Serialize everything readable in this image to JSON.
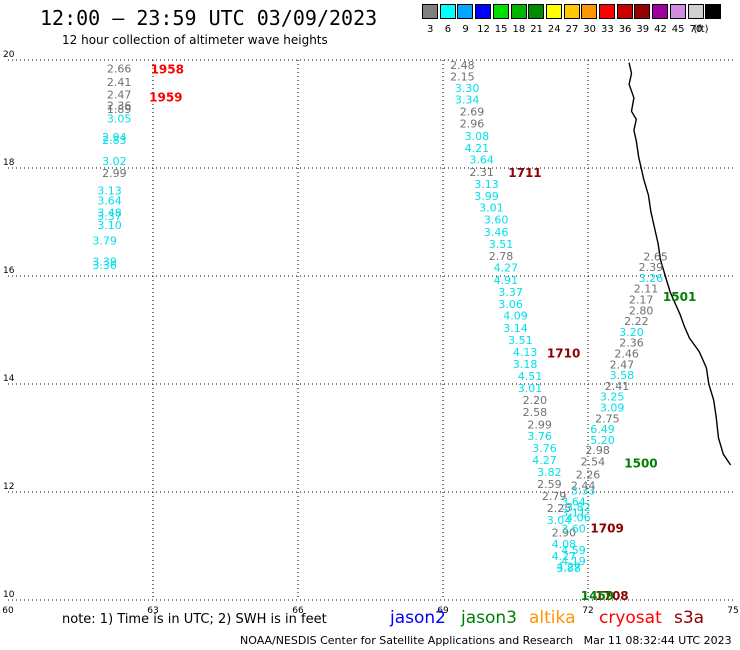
{
  "header": {
    "title": "12:00 — 23:59 UTC 03/09/2023",
    "subtitle": "12 hour collection of altimeter wave heights"
  },
  "legend": {
    "unit": "(ft)",
    "items": [
      {
        "label": "3",
        "color": "#808080"
      },
      {
        "label": "6",
        "color": "#00ffff"
      },
      {
        "label": "9",
        "color": "#00a8ff"
      },
      {
        "label": "12",
        "color": "#0000ff"
      },
      {
        "label": "15",
        "color": "#00dd00"
      },
      {
        "label": "18",
        "color": "#00b400"
      },
      {
        "label": "21",
        "color": "#008c00"
      },
      {
        "label": "24",
        "color": "#ffff00"
      },
      {
        "label": "27",
        "color": "#ffc800"
      },
      {
        "label": "30",
        "color": "#ff9600"
      },
      {
        "label": "33",
        "color": "#ff0000"
      },
      {
        "label": "36",
        "color": "#c80000"
      },
      {
        "label": "39",
        "color": "#960000"
      },
      {
        "label": "42",
        "color": "#a000a0"
      },
      {
        "label": "45",
        "color": "#d08ce0"
      },
      {
        "label": "70",
        "color": "#d0d0d0"
      },
      {
        "label": "",
        "color": "#000000"
      }
    ]
  },
  "axes": {
    "lon_ticks": [
      "60",
      "63",
      "66",
      "69",
      "72",
      "75"
    ],
    "lat_ticks": [
      "20",
      "18",
      "16",
      "14",
      "12",
      "10"
    ]
  },
  "colors": {
    "gray_value": "#707070",
    "cyan_value": "#00e0e8",
    "red_pass": "#ff0000",
    "darkred_pass": "#8b0000",
    "green_pass": "#008000",
    "jason2": "#0000ff",
    "jason3": "#008000",
    "altika": "#ff9600",
    "cryosat": "#ff0000",
    "s3a": "#8b0000"
  },
  "wave_labels": [
    {
      "v": "2.66",
      "c": "g",
      "lon": 62.3,
      "lat": 19.77
    },
    {
      "v": "2.41",
      "c": "g",
      "lon": 62.3,
      "lat": 19.52
    },
    {
      "v": "2.47",
      "c": "g",
      "lon": 62.3,
      "lat": 19.29
    },
    {
      "v": "2.36",
      "c": "g",
      "lon": 62.3,
      "lat": 19.08
    },
    {
      "v": "1.89",
      "c": "g",
      "lon": 62.3,
      "lat": 19.02
    },
    {
      "v": "3.05",
      "c": "c",
      "lon": 62.3,
      "lat": 18.84
    },
    {
      "v": "2.94",
      "c": "c",
      "lon": 62.2,
      "lat": 18.5
    },
    {
      "v": "2.83",
      "c": "c",
      "lon": 62.2,
      "lat": 18.44
    },
    {
      "v": "3.02",
      "c": "c",
      "lon": 62.2,
      "lat": 18.06
    },
    {
      "v": "2.99",
      "c": "g",
      "lon": 62.2,
      "lat": 17.83
    },
    {
      "v": "3.13",
      "c": "c",
      "lon": 62.1,
      "lat": 17.51
    },
    {
      "v": "3.64",
      "c": "c",
      "lon": 62.1,
      "lat": 17.32
    },
    {
      "v": "3.48",
      "c": "c",
      "lon": 62.1,
      "lat": 17.1
    },
    {
      "v": "3.37",
      "c": "c",
      "lon": 62.1,
      "lat": 17.04
    },
    {
      "v": "3.10",
      "c": "c",
      "lon": 62.1,
      "lat": 16.87
    },
    {
      "v": "3.79",
      "c": "c",
      "lon": 62.0,
      "lat": 16.58
    },
    {
      "v": "3.39",
      "c": "c",
      "lon": 62.0,
      "lat": 16.19
    },
    {
      "v": "3.36",
      "c": "c",
      "lon": 62.0,
      "lat": 16.13
    },
    {
      "v": "2.48",
      "c": "g",
      "lon": 69.4,
      "lat": 19.83
    },
    {
      "v": "2.15",
      "c": "g",
      "lon": 69.4,
      "lat": 19.62
    },
    {
      "v": "3.30",
      "c": "c",
      "lon": 69.5,
      "lat": 19.41
    },
    {
      "v": "3.34",
      "c": "c",
      "lon": 69.5,
      "lat": 19.19
    },
    {
      "v": "2.69",
      "c": "g",
      "lon": 69.6,
      "lat": 18.97
    },
    {
      "v": "2.96",
      "c": "g",
      "lon": 69.6,
      "lat": 18.75
    },
    {
      "v": "3.08",
      "c": "c",
      "lon": 69.7,
      "lat": 18.52
    },
    {
      "v": "4.21",
      "c": "c",
      "lon": 69.7,
      "lat": 18.3
    },
    {
      "v": "3.64",
      "c": "c",
      "lon": 69.8,
      "lat": 18.08
    },
    {
      "v": "2.31",
      "c": "g",
      "lon": 69.8,
      "lat": 17.85
    },
    {
      "v": "3.13",
      "c": "c",
      "lon": 69.9,
      "lat": 17.63
    },
    {
      "v": "3.99",
      "c": "c",
      "lon": 69.9,
      "lat": 17.41
    },
    {
      "v": "3.01",
      "c": "c",
      "lon": 70.0,
      "lat": 17.19
    },
    {
      "v": "3.60",
      "c": "c",
      "lon": 70.1,
      "lat": 16.97
    },
    {
      "v": "3.46",
      "c": "c",
      "lon": 70.1,
      "lat": 16.74
    },
    {
      "v": "3.51",
      "c": "c",
      "lon": 70.2,
      "lat": 16.52
    },
    {
      "v": "2.78",
      "c": "g",
      "lon": 70.2,
      "lat": 16.3
    },
    {
      "v": "4.27",
      "c": "c",
      "lon": 70.3,
      "lat": 16.08
    },
    {
      "v": "4.91",
      "c": "c",
      "lon": 70.3,
      "lat": 15.85
    },
    {
      "v": "3.37",
      "c": "c",
      "lon": 70.4,
      "lat": 15.63
    },
    {
      "v": "3.06",
      "c": "c",
      "lon": 70.4,
      "lat": 15.41
    },
    {
      "v": "4.09",
      "c": "c",
      "lon": 70.5,
      "lat": 15.19
    },
    {
      "v": "3.14",
      "c": "c",
      "lon": 70.5,
      "lat": 14.96
    },
    {
      "v": "3.51",
      "c": "c",
      "lon": 70.6,
      "lat": 14.74
    },
    {
      "v": "4.13",
      "c": "c",
      "lon": 70.7,
      "lat": 14.52
    },
    {
      "v": "3.18",
      "c": "c",
      "lon": 70.7,
      "lat": 14.3
    },
    {
      "v": "4.51",
      "c": "c",
      "lon": 70.8,
      "lat": 14.07
    },
    {
      "v": "3.01",
      "c": "c",
      "lon": 70.8,
      "lat": 13.85
    },
    {
      "v": "2.20",
      "c": "g",
      "lon": 70.9,
      "lat": 13.63
    },
    {
      "v": "2.58",
      "c": "g",
      "lon": 70.9,
      "lat": 13.41
    },
    {
      "v": "2.99",
      "c": "g",
      "lon": 71.0,
      "lat": 13.18
    },
    {
      "v": "3.76",
      "c": "c",
      "lon": 71.0,
      "lat": 12.96
    },
    {
      "v": "3.76",
      "c": "c",
      "lon": 71.1,
      "lat": 12.74
    },
    {
      "v": "4.27",
      "c": "c",
      "lon": 71.1,
      "lat": 12.52
    },
    {
      "v": "3.82",
      "c": "c",
      "lon": 71.2,
      "lat": 12.3
    },
    {
      "v": "2.59",
      "c": "g",
      "lon": 71.2,
      "lat": 12.07
    },
    {
      "v": "2.79",
      "c": "g",
      "lon": 71.3,
      "lat": 11.85
    },
    {
      "v": "2.25",
      "c": "g",
      "lon": 71.4,
      "lat": 11.63
    },
    {
      "v": "3.04",
      "c": "c",
      "lon": 71.4,
      "lat": 11.41
    },
    {
      "v": "2.90",
      "c": "g",
      "lon": 71.5,
      "lat": 11.18
    },
    {
      "v": "4.08",
      "c": "c",
      "lon": 71.5,
      "lat": 10.96
    },
    {
      "v": "4.27",
      "c": "c",
      "lon": 71.5,
      "lat": 10.74
    },
    {
      "v": "3.88",
      "c": "c",
      "lon": 71.6,
      "lat": 10.52
    },
    {
      "v": "3.64",
      "c": "c",
      "lon": 71.7,
      "lat": 11.75
    },
    {
      "v": "3.11",
      "c": "c",
      "lon": 71.7,
      "lat": 11.55
    },
    {
      "v": "3.82",
      "c": "c",
      "lon": 71.8,
      "lat": 11.65
    },
    {
      "v": "4.06",
      "c": "c",
      "lon": 71.8,
      "lat": 11.45
    },
    {
      "v": "3.60",
      "c": "c",
      "lon": 71.7,
      "lat": 11.25
    },
    {
      "v": "4.59",
      "c": "c",
      "lon": 71.7,
      "lat": 10.85
    },
    {
      "v": "4.19",
      "c": "c",
      "lon": 71.7,
      "lat": 10.65
    },
    {
      "v": "4.27",
      "c": "c",
      "lon": 71.6,
      "lat": 10.55
    },
    {
      "v": "3.33",
      "c": "c",
      "lon": 71.9,
      "lat": 11.95
    },
    {
      "v": "2.44",
      "c": "g",
      "lon": 71.9,
      "lat": 12.05
    },
    {
      "v": "2.26",
      "c": "g",
      "lon": 72.0,
      "lat": 12.25
    },
    {
      "v": "2.54",
      "c": "g",
      "lon": 72.1,
      "lat": 12.49
    },
    {
      "v": "2.98",
      "c": "g",
      "lon": 72.2,
      "lat": 12.7
    },
    {
      "v": "5.20",
      "c": "c",
      "lon": 72.3,
      "lat": 12.89
    },
    {
      "v": "6.49",
      "c": "c",
      "lon": 72.3,
      "lat": 13.09
    },
    {
      "v": "2.75",
      "c": "g",
      "lon": 72.4,
      "lat": 13.29
    },
    {
      "v": "3.09",
      "c": "c",
      "lon": 72.5,
      "lat": 13.49
    },
    {
      "v": "3.25",
      "c": "c",
      "lon": 72.5,
      "lat": 13.69
    },
    {
      "v": "2.41",
      "c": "g",
      "lon": 72.6,
      "lat": 13.89
    },
    {
      "v": "3.58",
      "c": "c",
      "lon": 72.7,
      "lat": 14.09
    },
    {
      "v": "2.47",
      "c": "g",
      "lon": 72.7,
      "lat": 14.29
    },
    {
      "v": "2.46",
      "c": "g",
      "lon": 72.8,
      "lat": 14.49
    },
    {
      "v": "2.36",
      "c": "g",
      "lon": 72.9,
      "lat": 14.69
    },
    {
      "v": "3.20",
      "c": "c",
      "lon": 72.9,
      "lat": 14.89
    },
    {
      "v": "2.22",
      "c": "g",
      "lon": 73.0,
      "lat": 15.09
    },
    {
      "v": "2.80",
      "c": "g",
      "lon": 73.1,
      "lat": 15.29
    },
    {
      "v": "2.17",
      "c": "g",
      "lon": 73.1,
      "lat": 15.49
    },
    {
      "v": "2.11",
      "c": "g",
      "lon": 73.2,
      "lat": 15.69
    },
    {
      "v": "3.26",
      "c": "c",
      "lon": 73.3,
      "lat": 15.89
    },
    {
      "v": "2.39",
      "c": "g",
      "lon": 73.3,
      "lat": 16.09
    },
    {
      "v": "2.65",
      "c": "g",
      "lon": 73.4,
      "lat": 16.29
    }
  ],
  "pass_labels": [
    {
      "t": "1958",
      "c": "r",
      "lon": 62.95,
      "lat": 19.75
    },
    {
      "t": "1959",
      "c": "r",
      "lon": 62.92,
      "lat": 19.23
    },
    {
      "t": "1711",
      "c": "d",
      "lon": 70.35,
      "lat": 17.83
    },
    {
      "t": "1710",
      "c": "d",
      "lon": 71.15,
      "lat": 14.49
    },
    {
      "t": "1709",
      "c": "d",
      "lon": 72.05,
      "lat": 11.25
    },
    {
      "t": "1708",
      "c": "d",
      "lon": 72.15,
      "lat": 10.0
    },
    {
      "t": "1501",
      "c": "gr",
      "lon": 73.55,
      "lat": 15.54
    },
    {
      "t": "1500",
      "c": "gr",
      "lon": 72.75,
      "lat": 12.45
    },
    {
      "t": "1459",
      "c": "gr",
      "lon": 71.85,
      "lat": 10.0
    }
  ],
  "coast": [
    [
      72.85,
      19.95
    ],
    [
      72.9,
      19.75
    ],
    [
      72.85,
      19.55
    ],
    [
      72.95,
      19.3
    ],
    [
      72.9,
      19.05
    ],
    [
      73.0,
      18.9
    ],
    [
      72.95,
      18.7
    ],
    [
      73.0,
      18.5
    ],
    [
      73.05,
      18.2
    ],
    [
      73.1,
      18.0
    ],
    [
      73.15,
      17.8
    ],
    [
      73.25,
      17.5
    ],
    [
      73.3,
      17.2
    ],
    [
      73.35,
      17.0
    ],
    [
      73.45,
      16.6
    ],
    [
      73.5,
      16.3
    ],
    [
      73.6,
      16.0
    ],
    [
      73.7,
      15.7
    ],
    [
      73.8,
      15.5
    ],
    [
      73.9,
      15.3
    ],
    [
      74.0,
      15.05
    ],
    [
      74.1,
      14.85
    ],
    [
      74.3,
      14.6
    ],
    [
      74.45,
      14.3
    ],
    [
      74.5,
      14.0
    ],
    [
      74.6,
      13.7
    ],
    [
      74.65,
      13.4
    ],
    [
      74.7,
      13.0
    ],
    [
      74.8,
      12.7
    ],
    [
      74.95,
      12.5
    ]
  ],
  "notes": {
    "note_text": "note: 1) Time is in UTC; 2) SWH is in feet",
    "jason2": "jason2",
    "jason3": "jason3",
    "altika": "altika",
    "cryosat": "cryosat",
    "s3a": "s3a",
    "credit": "NOAA/NESDIS Center for Satellite Applications and Research",
    "timestamp": "Mar 11 08:32:44 UTC 2023"
  }
}
